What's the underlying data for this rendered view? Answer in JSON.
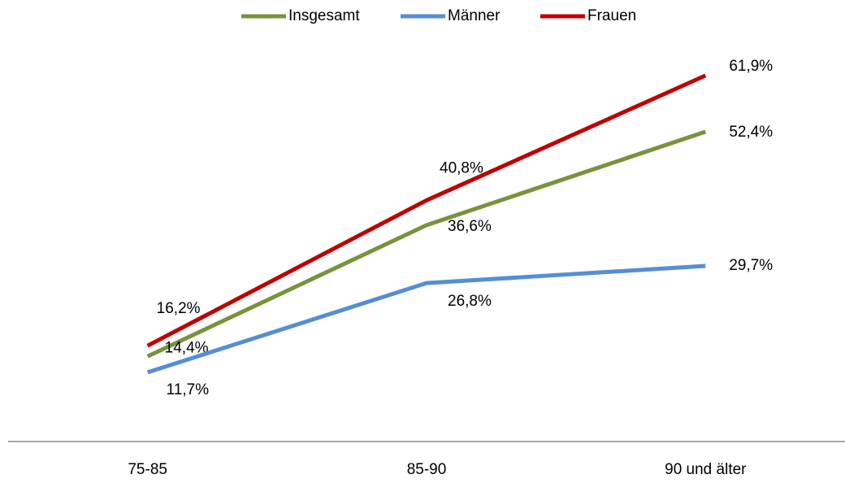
{
  "chart_data": {
    "type": "line",
    "categories": [
      "75-85",
      "85-90",
      "90 und älter"
    ],
    "series": [
      {
        "name": "Insgesamt",
        "color": "#77933c",
        "values": [
          14.4,
          36.6,
          52.4
        ],
        "value_labels": [
          "14,4%",
          "36,6%",
          "52,4%"
        ]
      },
      {
        "name": "Männer",
        "color": "#558ed5",
        "values": [
          11.7,
          26.8,
          29.7
        ],
        "value_labels": [
          "11,7%",
          "26,8%",
          "29,7%"
        ]
      },
      {
        "name": "Frauen",
        "color": "#c00000",
        "values": [
          16.2,
          40.8,
          61.9
        ],
        "value_labels": [
          "16,2%",
          "40,8%",
          "61,9%"
        ]
      }
    ],
    "ylim": [
      0,
      70
    ],
    "legend": "top"
  }
}
